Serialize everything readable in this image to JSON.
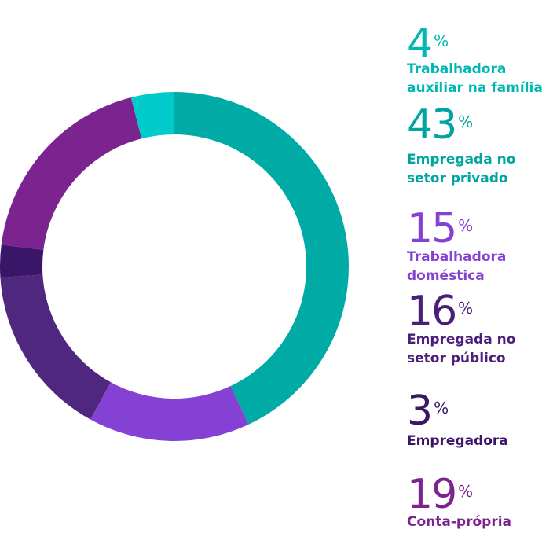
{
  "chart_data": {
    "type": "pie",
    "categories": [
      "Empregada no setor privado",
      "Trabalhadora doméstica",
      "Empregada no setor público",
      "Empregadora",
      "Conta-própria",
      "Trabalhadora auxiliar na família"
    ],
    "values": [
      43,
      15,
      16,
      3,
      19,
      4
    ],
    "colors": [
      "#00aaa5",
      "#8541d4",
      "#50277e",
      "#3b1567",
      "#7b2490",
      "#00cbcb"
    ]
  },
  "legend": [
    {
      "value": "4",
      "symbol": "%",
      "label_lines": [
        "Trabalhadora",
        "auxiliar na família"
      ],
      "color": "#00b7b3"
    },
    {
      "value": "43",
      "symbol": "%",
      "label_lines": [
        "Empregada no",
        "setor privado"
      ],
      "color": "#00a5a1"
    },
    {
      "value": "15",
      "symbol": "%",
      "label_lines": [
        "Trabalhadora",
        "doméstica"
      ],
      "color": "#8541d4"
    },
    {
      "value": "16",
      "symbol": "%",
      "label_lines": [
        "Empregada no",
        "setor público"
      ],
      "color": "#4a1f7a"
    },
    {
      "value": "3",
      "symbol": "%",
      "label_lines": [
        "Empregadora"
      ],
      "color": "#3b1567"
    },
    {
      "value": "19",
      "symbol": "%",
      "label_lines": [
        "Conta-própria"
      ],
      "color": "#7b2490"
    }
  ]
}
